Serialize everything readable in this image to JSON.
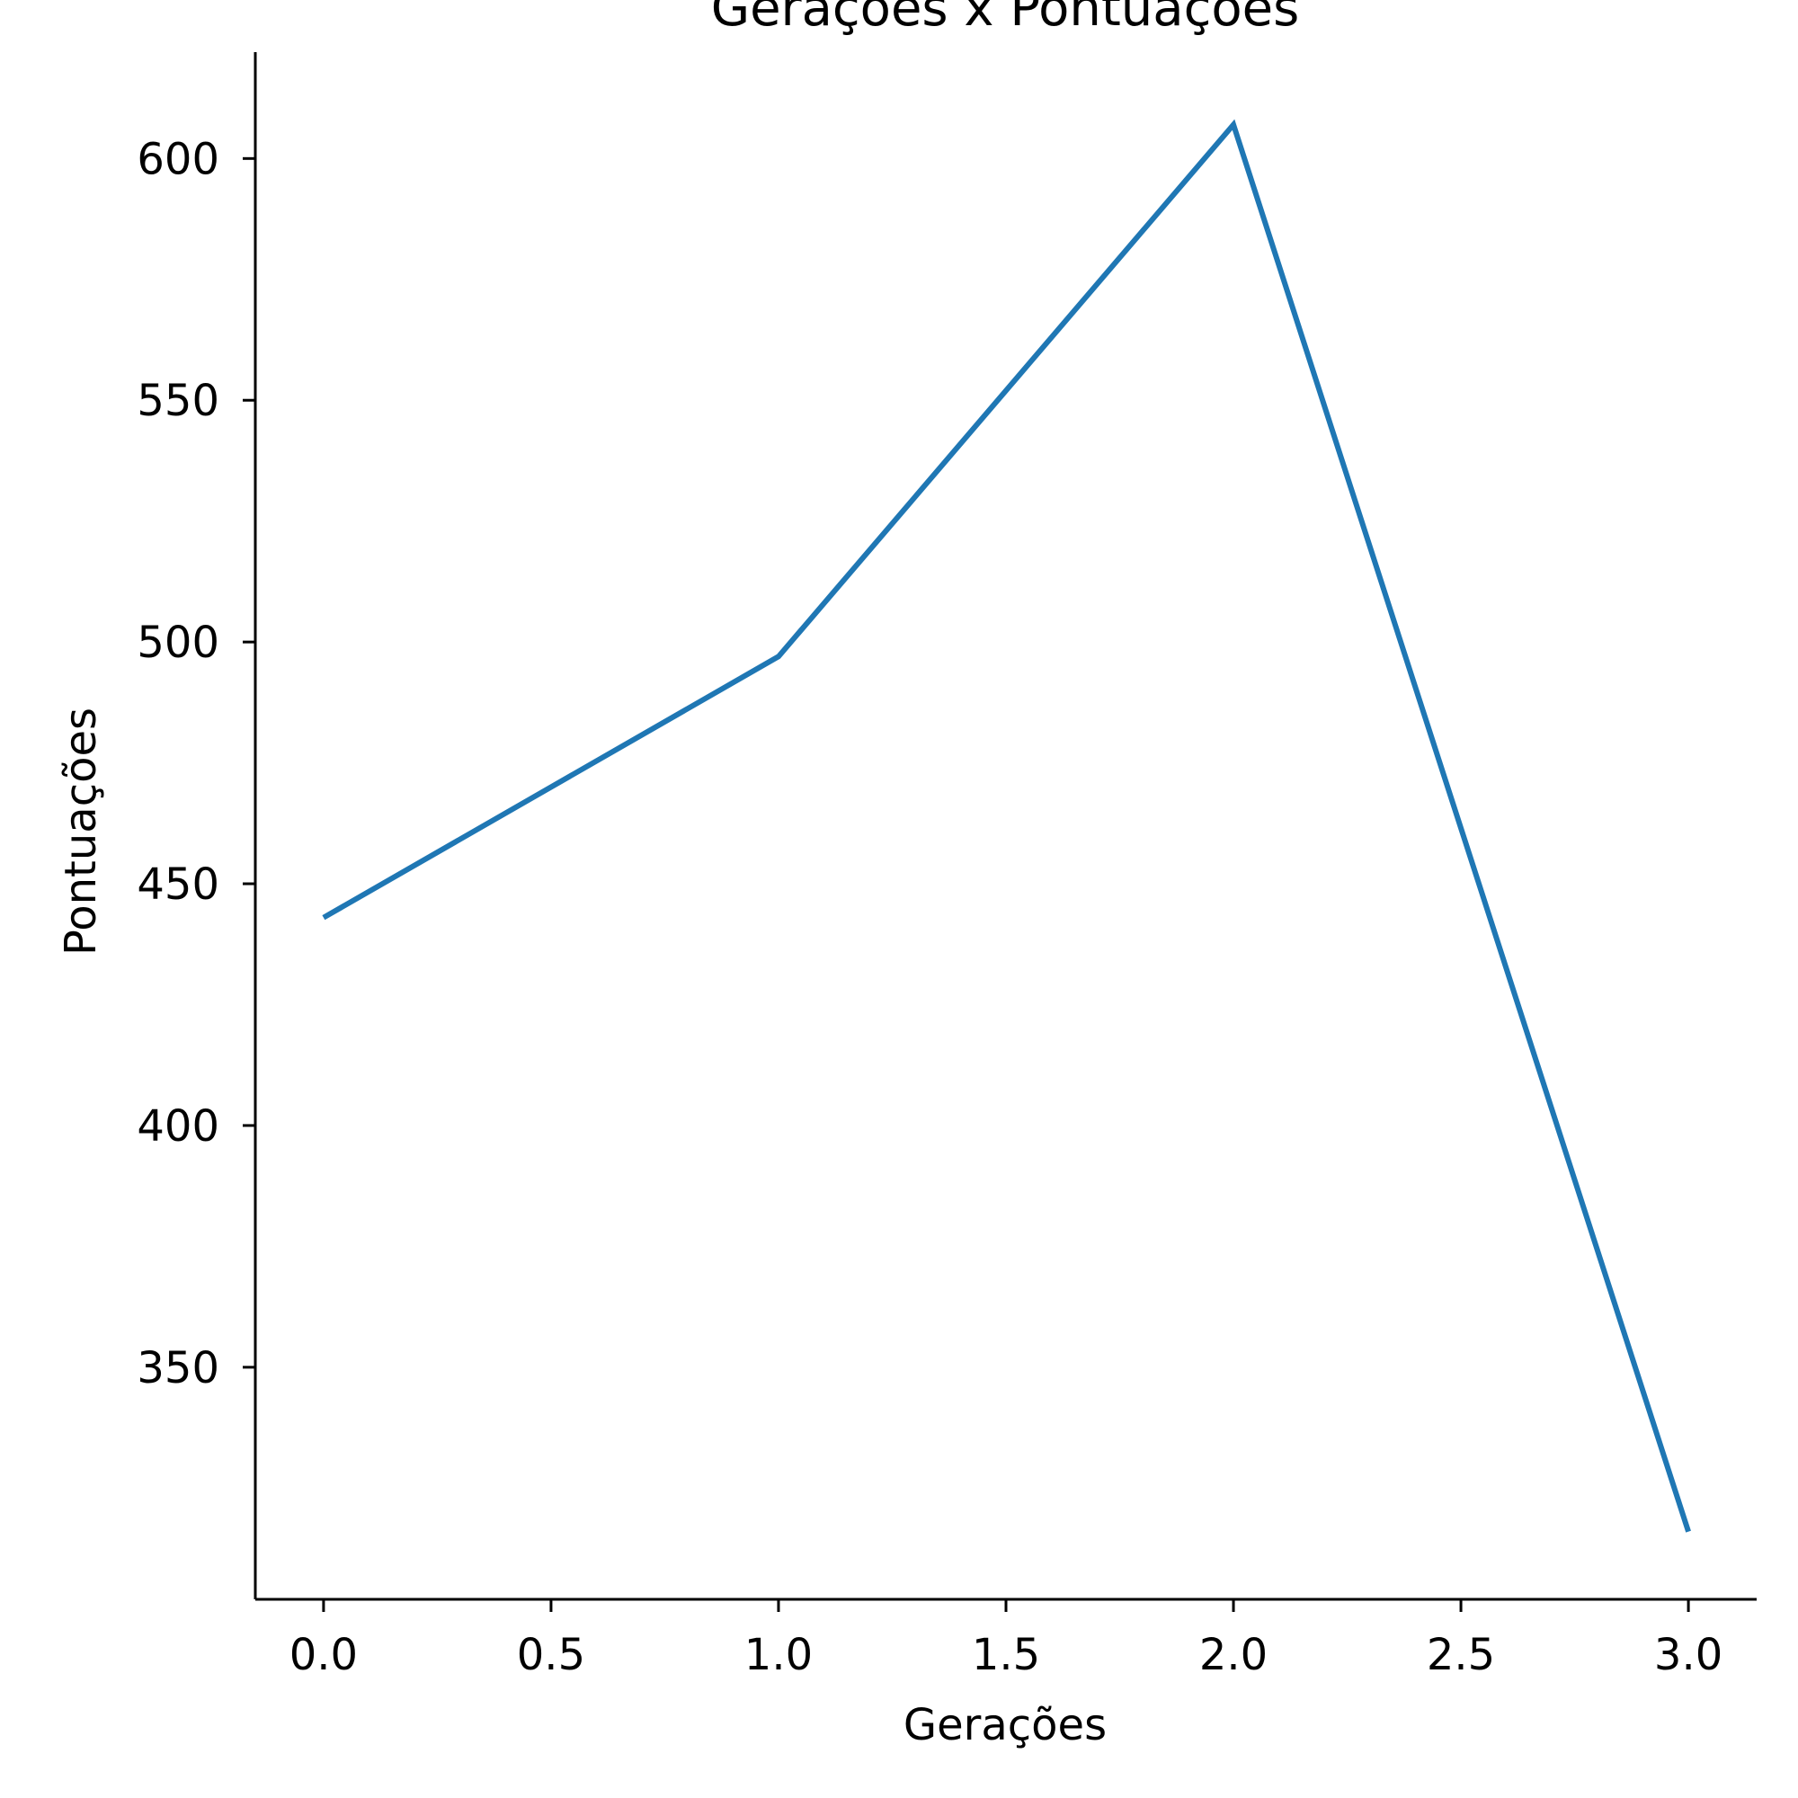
{
  "chart_data": {
    "type": "line",
    "title": "Gerações x Pontuações",
    "xlabel": "Gerações",
    "ylabel": "Pontuações",
    "x": [
      0,
      1,
      2,
      3
    ],
    "series": [
      {
        "values": [
          443,
          497,
          607,
          316
        ],
        "color": "#1f77b4"
      }
    ],
    "xlim": [
      -0.15,
      3.15
    ],
    "ylim": [
      302,
      622
    ],
    "xticks": [
      0.0,
      0.5,
      1.0,
      1.5,
      2.0,
      2.5,
      3.0
    ],
    "xtick_labels": [
      "0.0",
      "0.5",
      "1.0",
      "1.5",
      "2.0",
      "2.5",
      "3.0"
    ],
    "yticks": [
      350,
      400,
      450,
      500,
      550,
      600
    ],
    "ytick_labels": [
      "350",
      "400",
      "450",
      "500",
      "550",
      "600"
    ],
    "grid": false,
    "spines": [
      "left",
      "bottom"
    ]
  }
}
